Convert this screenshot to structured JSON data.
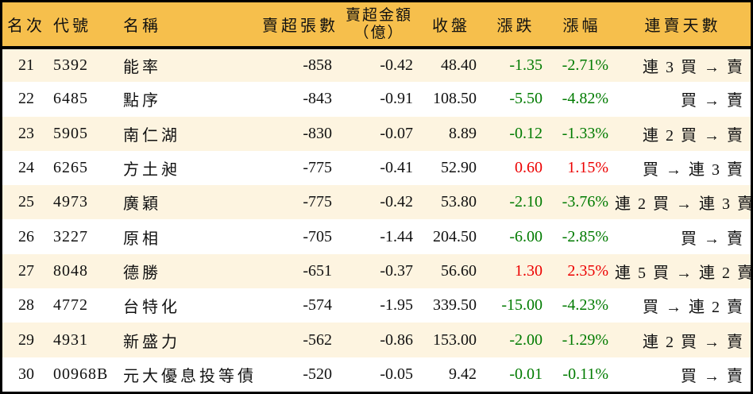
{
  "colors": {
    "header_bg": "#F6BF4C",
    "row_alt_bg": "#FDF4E0",
    "row_bg": "#FFFFFF",
    "up_red": "#EC0000",
    "down_green": "#007B00",
    "border": "#000000",
    "text": "#111111"
  },
  "table": {
    "headers": {
      "rank": "名次",
      "code": "代號",
      "name": "名稱",
      "sell_volume": "賣超張數",
      "sell_amount_line1": "賣超金額",
      "sell_amount_line2": "（億）",
      "close": "收盤",
      "change": "漲跌",
      "change_pct": "漲幅",
      "streak": "連賣天數"
    },
    "rows": [
      {
        "rank": "21",
        "code": "5392",
        "name": "能率",
        "sell_volume": "-858",
        "sell_amount": "-0.42",
        "close": "48.40",
        "change": "-1.35",
        "change_pct": "-2.71%",
        "streak": "連 3 買 → 賣",
        "direction": "down"
      },
      {
        "rank": "22",
        "code": "6485",
        "name": "點序",
        "sell_volume": "-843",
        "sell_amount": "-0.91",
        "close": "108.50",
        "change": "-5.50",
        "change_pct": "-4.82%",
        "streak": "買 → 賣",
        "direction": "down"
      },
      {
        "rank": "23",
        "code": "5905",
        "name": "南仁湖",
        "sell_volume": "-830",
        "sell_amount": "-0.07",
        "close": "8.89",
        "change": "-0.12",
        "change_pct": "-1.33%",
        "streak": "連 2 買 → 賣",
        "direction": "down"
      },
      {
        "rank": "24",
        "code": "6265",
        "name": "方土昶",
        "sell_volume": "-775",
        "sell_amount": "-0.41",
        "close": "52.90",
        "change": "0.60",
        "change_pct": "1.15%",
        "streak": "買 → 連 3 賣",
        "direction": "up"
      },
      {
        "rank": "25",
        "code": "4973",
        "name": "廣穎",
        "sell_volume": "-775",
        "sell_amount": "-0.42",
        "close": "53.80",
        "change": "-2.10",
        "change_pct": "-3.76%",
        "streak": "連 2 買 → 連 3 賣",
        "direction": "down"
      },
      {
        "rank": "26",
        "code": "3227",
        "name": "原相",
        "sell_volume": "-705",
        "sell_amount": "-1.44",
        "close": "204.50",
        "change": "-6.00",
        "change_pct": "-2.85%",
        "streak": "買 → 賣",
        "direction": "down"
      },
      {
        "rank": "27",
        "code": "8048",
        "name": "德勝",
        "sell_volume": "-651",
        "sell_amount": "-0.37",
        "close": "56.60",
        "change": "1.30",
        "change_pct": "2.35%",
        "streak": "連 5 買 → 連 2 賣",
        "direction": "up"
      },
      {
        "rank": "28",
        "code": "4772",
        "name": "台特化",
        "sell_volume": "-574",
        "sell_amount": "-1.95",
        "close": "339.50",
        "change": "-15.00",
        "change_pct": "-4.23%",
        "streak": "買 → 連 2 賣",
        "direction": "down"
      },
      {
        "rank": "29",
        "code": "4931",
        "name": "新盛力",
        "sell_volume": "-562",
        "sell_amount": "-0.86",
        "close": "153.00",
        "change": "-2.00",
        "change_pct": "-1.29%",
        "streak": "連 2 買 → 賣",
        "direction": "down"
      },
      {
        "rank": "30",
        "code": "00968B",
        "name": "元大優息投等債",
        "sell_volume": "-520",
        "sell_amount": "-0.05",
        "close": "9.42",
        "change": "-0.01",
        "change_pct": "-0.11%",
        "streak": "買 → 賣",
        "direction": "down"
      }
    ]
  },
  "chart_data": {
    "type": "table",
    "columns": [
      "名次",
      "代號",
      "名稱",
      "賣超張數",
      "賣超金額（億）",
      "收盤",
      "漲跌",
      "漲幅",
      "連賣天數"
    ],
    "rows": [
      [
        "21",
        "5392",
        "能率",
        "-858",
        "-0.42",
        "48.40",
        "-1.35",
        "-2.71%",
        "連 3 買 → 賣"
      ],
      [
        "22",
        "6485",
        "點序",
        "-843",
        "-0.91",
        "108.50",
        "-5.50",
        "-4.82%",
        "買 → 賣"
      ],
      [
        "23",
        "5905",
        "南仁湖",
        "-830",
        "-0.07",
        "8.89",
        "-0.12",
        "-1.33%",
        "連 2 買 → 賣"
      ],
      [
        "24",
        "6265",
        "方土昶",
        "-775",
        "-0.41",
        "52.90",
        "0.60",
        "1.15%",
        "買 → 連 3 賣"
      ],
      [
        "25",
        "4973",
        "廣穎",
        "-775",
        "-0.42",
        "53.80",
        "-2.10",
        "-3.76%",
        "連 2 買 → 連 3 賣"
      ],
      [
        "26",
        "3227",
        "原相",
        "-705",
        "-1.44",
        "204.50",
        "-6.00",
        "-2.85%",
        "買 → 賣"
      ],
      [
        "27",
        "8048",
        "德勝",
        "-651",
        "-0.37",
        "56.60",
        "1.30",
        "2.35%",
        "連 5 買 → 連 2 賣"
      ],
      [
        "28",
        "4772",
        "台特化",
        "-574",
        "-1.95",
        "339.50",
        "-15.00",
        "-4.23%",
        "買 → 連 2 賣"
      ],
      [
        "29",
        "4931",
        "新盛力",
        "-562",
        "-0.86",
        "153.00",
        "-2.00",
        "-1.29%",
        "連 2 買 → 賣"
      ],
      [
        "30",
        "00968B",
        "元大優息投等債",
        "-520",
        "-0.05",
        "9.42",
        "-0.01",
        "-0.11%",
        "買 → 賣"
      ]
    ],
    "notes": "Taiwan stock net-sell ranking rows 21-30; positive change values shown red, negative shown green"
  }
}
